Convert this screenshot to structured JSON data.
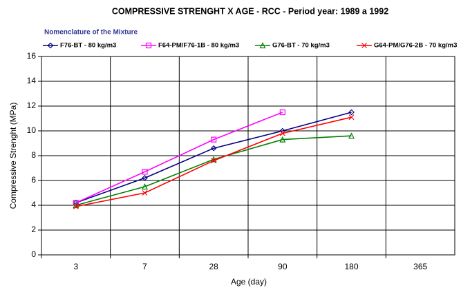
{
  "chart_data": {
    "type": "line",
    "title": "COMPRESSIVE STRENGHT X AGE - RCC - Period year: 1989 a 1992",
    "legend_title": "Nomenclature of the Mixture",
    "x_label": "Age (day)",
    "y_label": "Compressive Strenght (MPa)",
    "categories": [
      "3",
      "7",
      "28",
      "90",
      "180",
      "365"
    ],
    "series": [
      {
        "name": "F76-BT - 80 kg/m3",
        "color": "#000080",
        "marker": "diamond",
        "values": [
          4.2,
          6.2,
          8.6,
          10.0,
          11.5,
          null
        ]
      },
      {
        "name": "F64-PM/F76-1B - 80 kg/m3",
        "color": "#ff00ff",
        "marker": "square",
        "values": [
          4.2,
          6.7,
          9.3,
          11.5,
          null,
          null
        ]
      },
      {
        "name": "G76-BT - 70 kg/m3",
        "color": "#008000",
        "marker": "triangle",
        "values": [
          4.0,
          5.5,
          7.7,
          9.3,
          9.6,
          null
        ]
      },
      {
        "name": "G64-PM/G76-2B - 70 kg/m3",
        "color": "#ff0000",
        "marker": "x",
        "values": [
          3.9,
          5.0,
          7.6,
          9.8,
          11.1,
          null
        ]
      }
    ],
    "ylim": [
      0,
      16
    ],
    "yticks": [
      0,
      2,
      4,
      6,
      8,
      10,
      12,
      14,
      16
    ],
    "grid": true
  }
}
